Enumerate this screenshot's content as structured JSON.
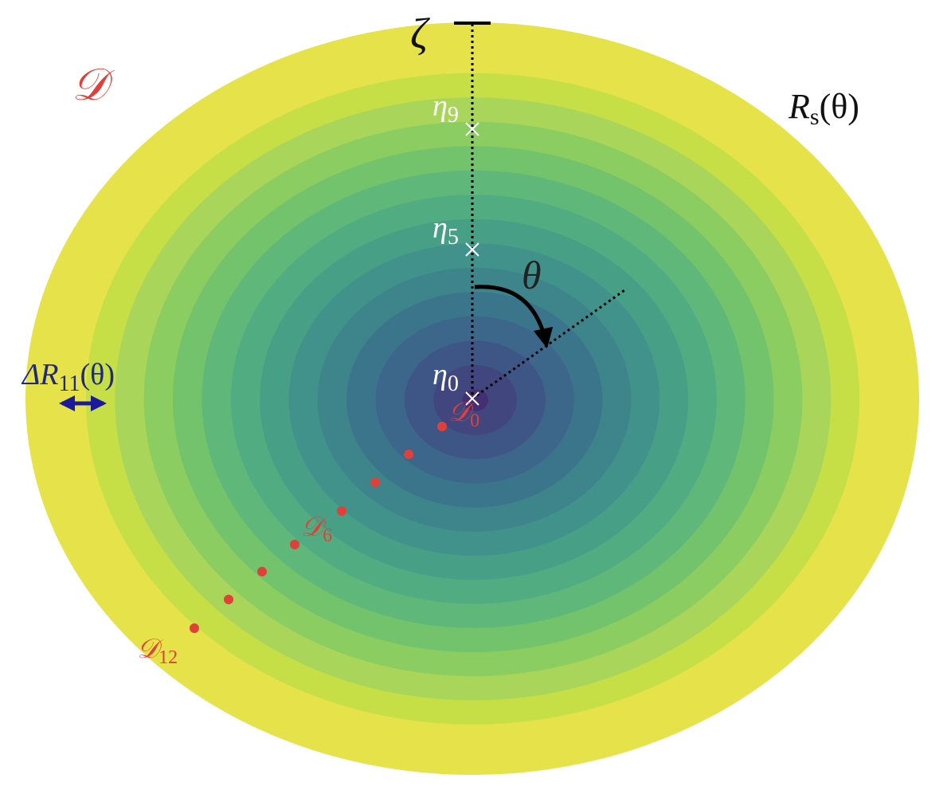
{
  "labels": {
    "domain": "𝒟",
    "zeta": "ζ",
    "rs": {
      "base": "R",
      "sub": "s",
      "rest": "(θ)"
    },
    "eta9": {
      "base": "η",
      "sub": "9"
    },
    "eta5": {
      "base": "η",
      "sub": "5"
    },
    "eta0": {
      "base": "η",
      "sub": "0"
    },
    "theta": "θ",
    "delta_r": {
      "base": "ΔR",
      "sub": "11",
      "rest": "(θ)"
    },
    "d0": {
      "base": "𝒟",
      "sub": "0"
    },
    "d6": {
      "base": "𝒟",
      "sub": "6"
    },
    "d12": {
      "base": "𝒟",
      "sub": "12"
    }
  }
}
